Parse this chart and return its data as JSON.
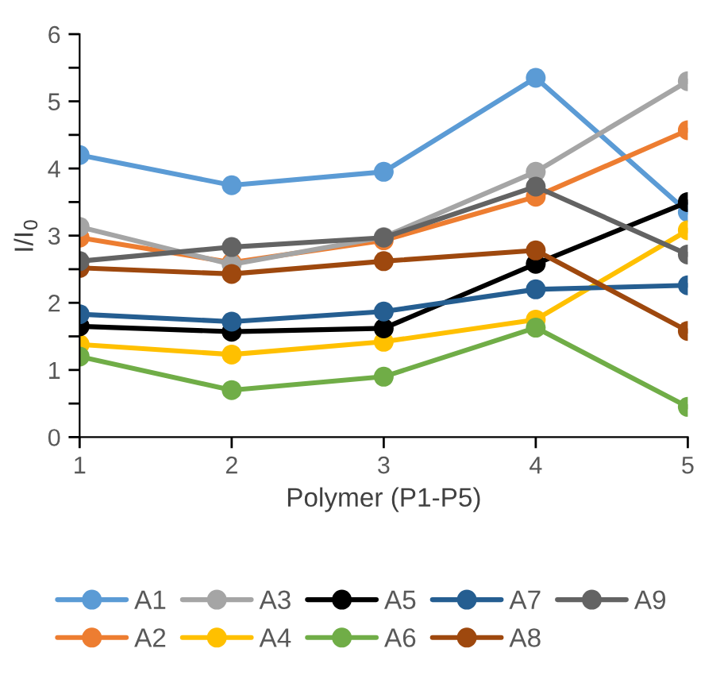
{
  "chart_data": {
    "type": "line",
    "xlabel": "Polymer (P1-P5)",
    "ylabel": "I/I$_{0}$",
    "x": [
      1,
      2,
      3,
      4,
      5
    ],
    "xlim": [
      1,
      5
    ],
    "xticks": [
      1,
      2,
      3,
      4,
      5
    ],
    "ylim": [
      0,
      6
    ],
    "yticks": [
      0,
      {
        "value": 0.5,
        "label": null
      },
      1,
      {
        "value": 1.5,
        "label": null
      },
      2,
      {
        "value": 2.5,
        "label": null
      },
      3,
      {
        "value": 3.5,
        "label": null
      },
      4,
      {
        "value": 4.5,
        "label": null
      },
      5,
      {
        "value": 5.5,
        "label": null
      },
      6
    ],
    "grid": false,
    "legend": "bottom",
    "marker": "circle",
    "line_style": "solid",
    "series": [
      {
        "name": "A1",
        "color": "#5b9bd5",
        "values": [
          4.2,
          3.75,
          3.95,
          5.35,
          3.35
        ]
      },
      {
        "name": "A2",
        "color": "#ed7d31",
        "values": [
          2.97,
          2.6,
          2.93,
          3.58,
          4.57
        ]
      },
      {
        "name": "A3",
        "color": "#a5a5a5",
        "values": [
          3.13,
          2.57,
          2.98,
          3.95,
          5.3
        ]
      },
      {
        "name": "A4",
        "color": "#ffc000",
        "values": [
          1.38,
          1.23,
          1.42,
          1.75,
          3.08
        ]
      },
      {
        "name": "A5",
        "color": "#000000",
        "values": [
          1.65,
          1.57,
          1.62,
          2.58,
          3.5
        ]
      },
      {
        "name": "A6",
        "color": "#70ad47",
        "values": [
          1.2,
          0.7,
          0.9,
          1.63,
          0.45
        ]
      },
      {
        "name": "A7",
        "color": "#255e91",
        "values": [
          1.83,
          1.72,
          1.87,
          2.2,
          2.26
        ]
      },
      {
        "name": "A8",
        "color": "#9e480e",
        "values": [
          2.52,
          2.43,
          2.62,
          2.78,
          1.58
        ]
      },
      {
        "name": "A9",
        "color": "#636363",
        "values": [
          2.62,
          2.83,
          2.97,
          3.73,
          2.72
        ]
      }
    ]
  }
}
